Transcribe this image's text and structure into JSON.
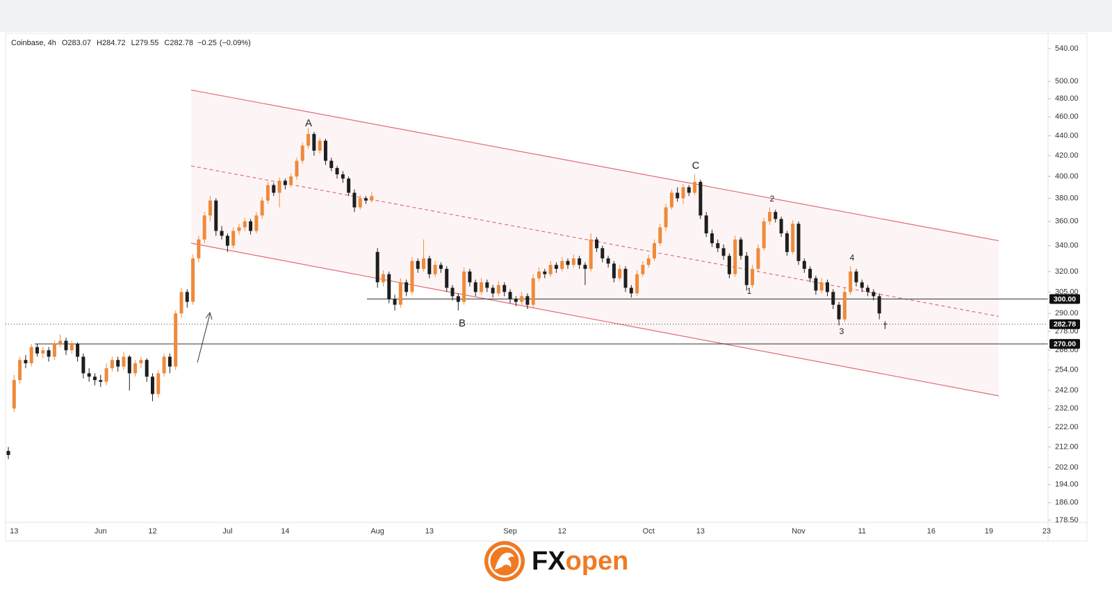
{
  "chart_data": {
    "type": "candlestick",
    "info": [
      {
        "value": 283.07,
        "label": "O283.07"
      },
      {
        "value": 284.72,
        "label": "H284.72"
      },
      {
        "value": 279.55,
        "label": "L279.55"
      },
      {
        "value": 282.78,
        "label": "C282.78"
      },
      {
        "value": -0.25,
        "label": "−0.25"
      },
      {
        "value": -0.09,
        "label": "(−0.09%)"
      }
    ],
    "symbol": "Coinbase, 4h",
    "log_y": true,
    "grid": false,
    "up_color": "#ef8a3a",
    "down_color": "#1e1e1e",
    "ylim": [
      177.6,
      557.9
    ],
    "yticks": [
      {
        "value": 540,
        "label": "540.00"
      },
      {
        "value": 500,
        "label": "500.00"
      },
      {
        "value": 480,
        "label": "480.00"
      },
      {
        "value": 460,
        "label": "460.00"
      },
      {
        "value": 440,
        "label": "440.00"
      },
      {
        "value": 420,
        "label": "420.00"
      },
      {
        "value": 400,
        "label": "400.00"
      },
      {
        "value": 380,
        "label": "380.00"
      },
      {
        "value": 360,
        "label": "360.00"
      },
      {
        "value": 340,
        "label": "340.00"
      },
      {
        "value": 320,
        "label": "320.00"
      },
      {
        "value": 305,
        "label": "305.00"
      },
      {
        "value": 290,
        "label": "290.00"
      },
      {
        "value": 278,
        "label": "278.00"
      },
      {
        "value": 266,
        "label": "266.00"
      },
      {
        "value": 254,
        "label": "254.00"
      },
      {
        "value": 242,
        "label": "242.00"
      },
      {
        "value": 232,
        "label": "232.00"
      },
      {
        "value": 222,
        "label": "222.00"
      },
      {
        "value": 212,
        "label": "212.00"
      },
      {
        "value": 202,
        "label": "202.00"
      },
      {
        "value": 194,
        "label": "194.00"
      },
      {
        "value": 186,
        "label": "186.00"
      },
      {
        "value": 178.5,
        "label": "178.50"
      }
    ],
    "levels": [
      {
        "value": 300,
        "label": "300.00"
      },
      {
        "value": 282.78,
        "label": "282.78"
      },
      {
        "value": 270,
        "label": "270.00"
      }
    ],
    "channel": {
      "color": "#e06b74",
      "upper": [
        490,
        344
      ],
      "middle": [
        410,
        288
      ],
      "lower": [
        342,
        239
      ]
    },
    "annotations": [
      "A",
      "B",
      "C",
      "1",
      "2",
      "3",
      "4"
    ],
    "brand_parts": [
      "FX",
      "open"
    ],
    "categories": [
      null,
      "13",
      null,
      null,
      null,
      null,
      null,
      null,
      null,
      null,
      null,
      null,
      null,
      null,
      null,
      null,
      "Jun",
      null,
      null,
      null,
      null,
      null,
      null,
      null,
      null,
      "12",
      null,
      null,
      null,
      null,
      null,
      null,
      null,
      null,
      null,
      null,
      null,
      null,
      "Jul",
      null,
      null,
      null,
      null,
      null,
      null,
      null,
      null,
      null,
      "14",
      null,
      null,
      null,
      null,
      null,
      null,
      null,
      null,
      null,
      null,
      null,
      null,
      null,
      null,
      null,
      "Aug",
      null,
      null,
      null,
      null,
      null,
      null,
      null,
      null,
      "13",
      null,
      null,
      null,
      null,
      null,
      null,
      null,
      null,
      null,
      null,
      null,
      null,
      null,
      "Sep",
      null,
      null,
      null,
      null,
      null,
      null,
      null,
      null,
      "12",
      null,
      null,
      null,
      null,
      null,
      null,
      null,
      null,
      null,
      null,
      null,
      null,
      null,
      null,
      "Oct",
      null,
      null,
      null,
      null,
      null,
      null,
      null,
      null,
      "13",
      null,
      null,
      null,
      null,
      null,
      null,
      null,
      null,
      null,
      null,
      null,
      null,
      null,
      null,
      null,
      null,
      "Nov",
      null,
      null,
      null,
      null,
      null,
      null,
      null,
      null,
      null,
      null,
      "11",
      null,
      null,
      null,
      null,
      null,
      null,
      null,
      null,
      null,
      null,
      null,
      "16",
      null,
      null,
      null,
      null,
      null,
      null,
      null,
      null,
      null,
      "19",
      null,
      null,
      null,
      null,
      null,
      null,
      null,
      null,
      null,
      "23"
    ],
    "values": [
      [
        210,
        212,
        206,
        208
      ],
      [
        232,
        251,
        230,
        248
      ],
      [
        248,
        262,
        246,
        260
      ],
      [
        260,
        263,
        255,
        258
      ],
      [
        258,
        270,
        256,
        268
      ],
      [
        268,
        270,
        262,
        264
      ],
      [
        264,
        268,
        261,
        266
      ],
      [
        266,
        268,
        259,
        262
      ],
      [
        262,
        272,
        260,
        270
      ],
      [
        270,
        276,
        268,
        272
      ],
      [
        272,
        274,
        263,
        266
      ],
      [
        266,
        272,
        264,
        270
      ],
      [
        270,
        271,
        259,
        262
      ],
      [
        262,
        264,
        249,
        252
      ],
      [
        252,
        255,
        247,
        250
      ],
      [
        250,
        252,
        245,
        248
      ],
      [
        248,
        251,
        244,
        247
      ],
      [
        247,
        258,
        245,
        255
      ],
      [
        255,
        262,
        253,
        260
      ],
      [
        260,
        262,
        253,
        256
      ],
      [
        256,
        265,
        254,
        262
      ],
      [
        262,
        263,
        242,
        252
      ],
      [
        252,
        260,
        250,
        258
      ],
      [
        258,
        262,
        255,
        260
      ],
      [
        260,
        261,
        247,
        250
      ],
      [
        250,
        252,
        236,
        240
      ],
      [
        240,
        254,
        238,
        252
      ],
      [
        252,
        264,
        250,
        262
      ],
      [
        262,
        264,
        252,
        256
      ],
      [
        256,
        292,
        254,
        290
      ],
      [
        290,
        308,
        287,
        305
      ],
      [
        305,
        307,
        294,
        298
      ],
      [
        298,
        333,
        296,
        330
      ],
      [
        330,
        348,
        327,
        345
      ],
      [
        345,
        368,
        342,
        365
      ],
      [
        365,
        382,
        360,
        378
      ],
      [
        378,
        380,
        348,
        352
      ],
      [
        352,
        356,
        345,
        348
      ],
      [
        348,
        350,
        335,
        340
      ],
      [
        340,
        355,
        338,
        352
      ],
      [
        352,
        358,
        349,
        355
      ],
      [
        355,
        363,
        352,
        360
      ],
      [
        360,
        362,
        349,
        352
      ],
      [
        352,
        368,
        350,
        365
      ],
      [
        365,
        381,
        362,
        378
      ],
      [
        378,
        395,
        375,
        392
      ],
      [
        392,
        394,
        382,
        385
      ],
      [
        385,
        399,
        372,
        396
      ],
      [
        396,
        398,
        388,
        392
      ],
      [
        392,
        403,
        390,
        400
      ],
      [
        400,
        418,
        397,
        415
      ],
      [
        415,
        433,
        412,
        430
      ],
      [
        430,
        448,
        427,
        442
      ],
      [
        442,
        444,
        420,
        425
      ],
      [
        425,
        438,
        422,
        435
      ],
      [
        435,
        437,
        411,
        415
      ],
      [
        415,
        418,
        405,
        408
      ],
      [
        408,
        410,
        398,
        402
      ],
      [
        402,
        405,
        394,
        398
      ],
      [
        398,
        400,
        382,
        385
      ],
      [
        385,
        388,
        368,
        372
      ],
      [
        372,
        383,
        370,
        380
      ],
      [
        380,
        382,
        375,
        378
      ],
      [
        378,
        386,
        376,
        382
      ],
      [
        335,
        338,
        308,
        312
      ],
      [
        312,
        321,
        309,
        318
      ],
      [
        318,
        320,
        297,
        300
      ],
      [
        300,
        303,
        292,
        296
      ],
      [
        296,
        315,
        294,
        312
      ],
      [
        312,
        314,
        302,
        305
      ],
      [
        305,
        331,
        303,
        328
      ],
      [
        328,
        330,
        319,
        322
      ],
      [
        322,
        345,
        320,
        330
      ],
      [
        330,
        332,
        315,
        318
      ],
      [
        318,
        328,
        316,
        325
      ],
      [
        325,
        327,
        319,
        322
      ],
      [
        322,
        324,
        305,
        308
      ],
      [
        308,
        310,
        299,
        302
      ],
      [
        302,
        304,
        292,
        298
      ],
      [
        298,
        323,
        296,
        320
      ],
      [
        320,
        322,
        309,
        312
      ],
      [
        312,
        314,
        302,
        305
      ],
      [
        305,
        315,
        303,
        312
      ],
      [
        312,
        314,
        305,
        308
      ],
      [
        308,
        310,
        301,
        304
      ],
      [
        304,
        313,
        302,
        310
      ],
      [
        310,
        312,
        302,
        305
      ],
      [
        305,
        307,
        297,
        300
      ],
      [
        300,
        302,
        295,
        298
      ],
      [
        298,
        305,
        296,
        302
      ],
      [
        302,
        304,
        293,
        296
      ],
      [
        296,
        318,
        294,
        315
      ],
      [
        315,
        323,
        313,
        320
      ],
      [
        320,
        322,
        315,
        318
      ],
      [
        318,
        328,
        316,
        325
      ],
      [
        325,
        327,
        319,
        322
      ],
      [
        322,
        331,
        320,
        328
      ],
      [
        328,
        330,
        322,
        325
      ],
      [
        325,
        333,
        323,
        330
      ],
      [
        330,
        332,
        322,
        325
      ],
      [
        325,
        327,
        310,
        322
      ],
      [
        322,
        350,
        320,
        345
      ],
      [
        345,
        347,
        335,
        338
      ],
      [
        338,
        340,
        327,
        330
      ],
      [
        330,
        332,
        323,
        326
      ],
      [
        326,
        328,
        312,
        315
      ],
      [
        315,
        325,
        313,
        322
      ],
      [
        322,
        324,
        305,
        308
      ],
      [
        308,
        310,
        301,
        304
      ],
      [
        304,
        321,
        302,
        318
      ],
      [
        318,
        328,
        316,
        325
      ],
      [
        325,
        333,
        323,
        330
      ],
      [
        330,
        345,
        328,
        342
      ],
      [
        342,
        358,
        340,
        355
      ],
      [
        355,
        375,
        352,
        372
      ],
      [
        372,
        388,
        370,
        385
      ],
      [
        385,
        390,
        377,
        380
      ],
      [
        380,
        393,
        375,
        390
      ],
      [
        390,
        392,
        382,
        385
      ],
      [
        385,
        402,
        383,
        395
      ],
      [
        395,
        397,
        362,
        365
      ],
      [
        365,
        368,
        347,
        350
      ],
      [
        350,
        353,
        339,
        342
      ],
      [
        342,
        345,
        335,
        338
      ],
      [
        338,
        341,
        329,
        332
      ],
      [
        332,
        334,
        315,
        318
      ],
      [
        318,
        348,
        316,
        345
      ],
      [
        345,
        347,
        329,
        332
      ],
      [
        332,
        335,
        306,
        310
      ],
      [
        310,
        325,
        308,
        322
      ],
      [
        322,
        341,
        320,
        338
      ],
      [
        338,
        363,
        336,
        360
      ],
      [
        360,
        372,
        357,
        368
      ],
      [
        368,
        370,
        359,
        362
      ],
      [
        362,
        364,
        347,
        350
      ],
      [
        350,
        352,
        332,
        335
      ],
      [
        335,
        361,
        333,
        358
      ],
      [
        358,
        360,
        325,
        328
      ],
      [
        328,
        330,
        319,
        322
      ],
      [
        322,
        324,
        312,
        315
      ],
      [
        315,
        317,
        303,
        306
      ],
      [
        306,
        315,
        304,
        312
      ],
      [
        312,
        314,
        302,
        305
      ],
      [
        305,
        307,
        293,
        296
      ],
      [
        296,
        298,
        282,
        286
      ],
      [
        286,
        308,
        284,
        305
      ],
      [
        305,
        324,
        303,
        320
      ],
      [
        320,
        322,
        309,
        312
      ],
      [
        312,
        314,
        305,
        308
      ],
      [
        308,
        310,
        302,
        305
      ],
      [
        305,
        307,
        299,
        302
      ],
      [
        302,
        304,
        286,
        290
      ],
      [
        283.07,
        284.72,
        279.55,
        282.78
      ],
      null,
      null,
      null,
      null,
      null,
      null,
      null,
      null,
      null,
      null,
      null,
      null,
      null,
      null,
      null,
      null,
      null,
      null,
      null,
      null,
      null,
      null,
      null,
      null,
      null,
      null,
      null,
      null
    ]
  }
}
